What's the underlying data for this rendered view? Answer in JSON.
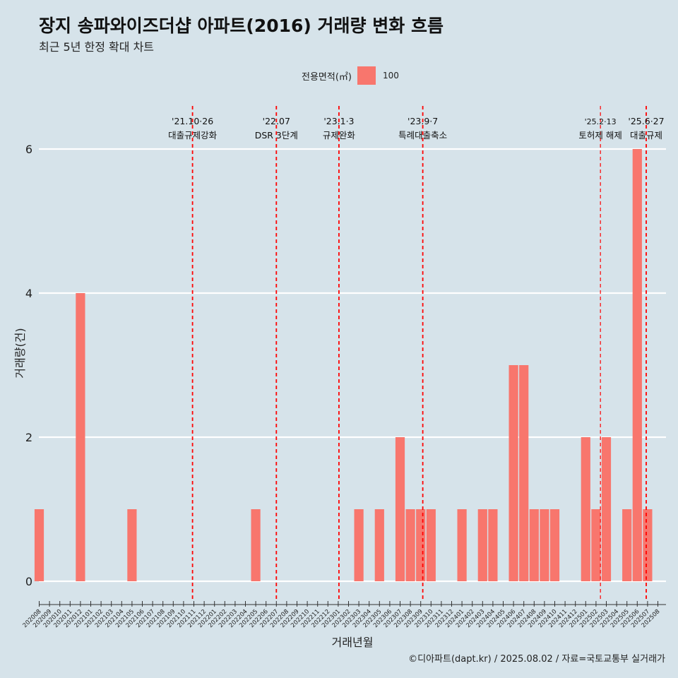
{
  "title": "장지 송파와이즈더샵 아파트(2016) 거래량 변화 흐름",
  "subtitle": "최근 5년 한정 확대 차트",
  "caption": "©디아파트(dapt.kr) / 2025.08.02 / 자료=국토교통부 실거래가",
  "legend": {
    "title": "전용면적(㎡)",
    "label": "100"
  },
  "colors": {
    "bar": "#f8766d",
    "background": "#d6e3ea",
    "grid": "#ffffff",
    "event_line": "#ff0000"
  },
  "chart_data": {
    "type": "bar",
    "title": "장지 송파와이즈더샵 아파트(2016) 거래량 변화 흐름",
    "xlabel": "거래년월",
    "ylabel": "거래량(건)",
    "ylim": [
      0,
      6
    ],
    "yticks": [
      0,
      2,
      4,
      6
    ],
    "grid": true,
    "legend_position": "top",
    "categories": [
      "202008",
      "202009",
      "202010",
      "202011",
      "202012",
      "202101",
      "202102",
      "202103",
      "202104",
      "202105",
      "202106",
      "202107",
      "202108",
      "202109",
      "202110",
      "202111",
      "202112",
      "202201",
      "202202",
      "202203",
      "202204",
      "202205",
      "202206",
      "202207",
      "202208",
      "202209",
      "202210",
      "202211",
      "202212",
      "202301",
      "202302",
      "202303",
      "202304",
      "202305",
      "202306",
      "202307",
      "202308",
      "202309",
      "202310",
      "202311",
      "202312",
      "202401",
      "202402",
      "202403",
      "202404",
      "202405",
      "202406",
      "202407",
      "202408",
      "202409",
      "202410",
      "202411",
      "202412",
      "202501",
      "202502",
      "202503",
      "202504",
      "202505",
      "202506",
      "202507",
      "202508"
    ],
    "series": [
      {
        "name": "100",
        "values": [
          1,
          0,
          0,
          0,
          4,
          0,
          0,
          0,
          0,
          1,
          0,
          0,
          0,
          0,
          0,
          0,
          0,
          0,
          0,
          0,
          0,
          1,
          0,
          0,
          0,
          0,
          0,
          0,
          0,
          0,
          0,
          1,
          0,
          1,
          0,
          2,
          1,
          1,
          1,
          0,
          0,
          1,
          0,
          1,
          1,
          0,
          3,
          3,
          1,
          1,
          1,
          0,
          0,
          2,
          1,
          2,
          0,
          1,
          6,
          1,
          0
        ]
      }
    ],
    "events": [
      {
        "date": "'21.10·26",
        "label": "대출규제강화",
        "month": "202110",
        "offset": 0.87
      },
      {
        "date": "'22.07",
        "label": "DSR 3단계",
        "month": "202207",
        "offset": 0.0
      },
      {
        "date": "'23.1·3",
        "label": "규제완화",
        "month": "202301",
        "offset": 0.07
      },
      {
        "date": "'23.9·7",
        "label": "특례대출축소",
        "month": "202309",
        "offset": 0.2
      },
      {
        "date": "'25.2·13",
        "label": "토허제 해제",
        "month": "202502",
        "offset": 0.43
      },
      {
        "date": "'25.6·27",
        "label": "대출규제",
        "month": "202506",
        "offset": 0.87
      }
    ]
  }
}
